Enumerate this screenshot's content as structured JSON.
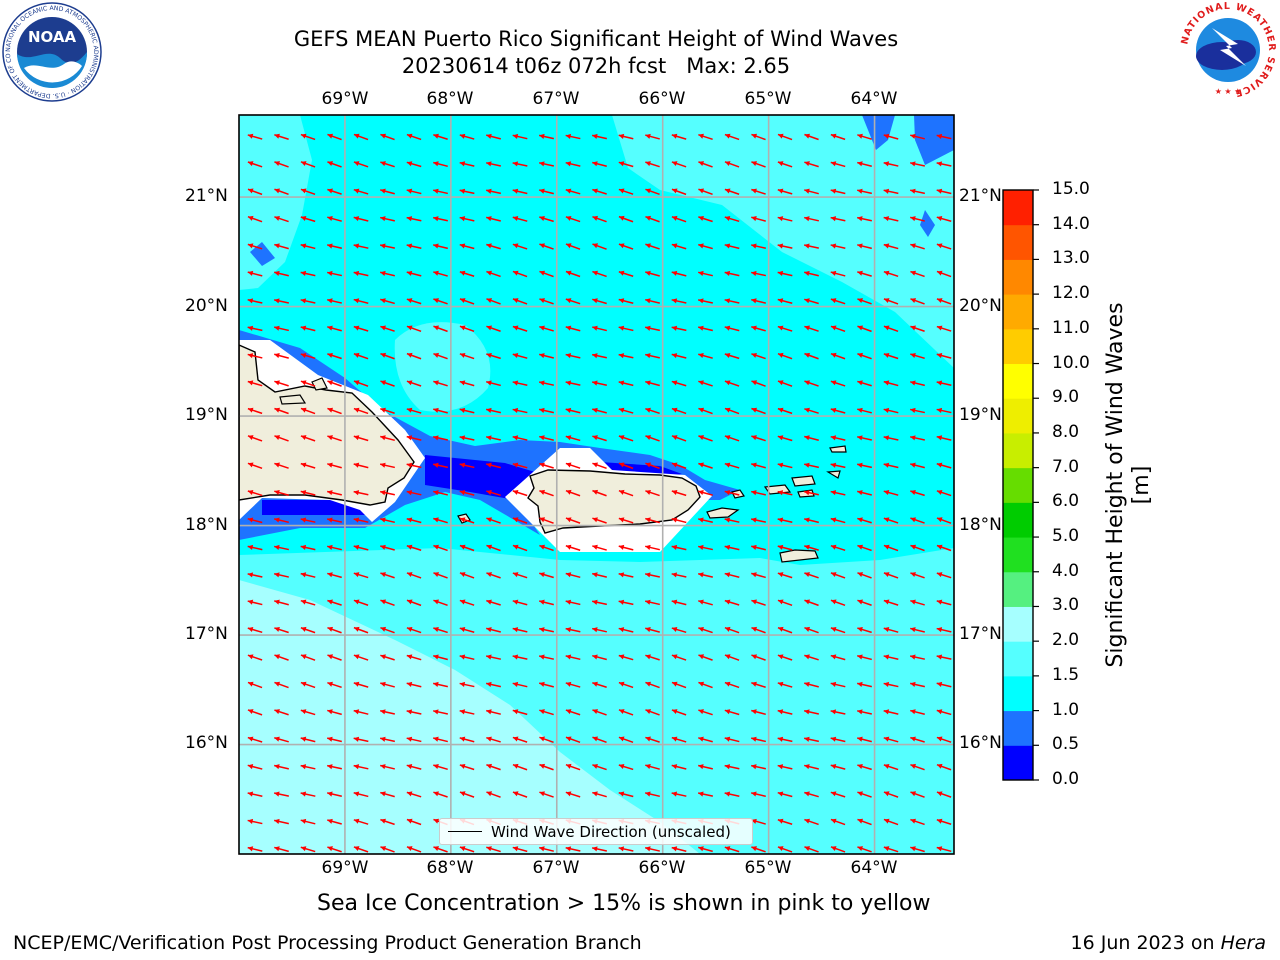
{
  "title": {
    "line1": "GEFS MEAN Puerto Rico Significant Height of Wind Waves",
    "line2": "20230614 t06z 072h fcst   Max: 2.65"
  },
  "logos": {
    "left_name": "noaa-logo",
    "left_text": "NOAA",
    "left_ring_text": "NATIONAL OCEANIC AND ATMOSPHERIC ADMINISTRATION · U.S. DEPARTMENT OF COMMERCE",
    "right_name": "national-weather-service-logo",
    "right_ring_text": "NATIONAL WEATHER SERVICE"
  },
  "map": {
    "lon_range": [
      -70.0,
      -63.25
    ],
    "lat_range": [
      15.0,
      21.75
    ],
    "lon_ticks": [
      "69°W",
      "68°W",
      "67°W",
      "66°W",
      "65°W",
      "64°W"
    ],
    "lon_values": [
      -69,
      -68,
      -67,
      -66,
      -65,
      -64
    ],
    "lat_ticks": [
      "21°N",
      "20°N",
      "19°N",
      "18°N",
      "17°N",
      "16°N"
    ],
    "lat_values": [
      21,
      20,
      19,
      18,
      17,
      16
    ],
    "grid": true,
    "arrow_color": "#ff0000",
    "land_color": "#f0eedc",
    "legend_label": "Wind Wave Direction (unscaled)",
    "legend_location": "lower-center"
  },
  "colorbar": {
    "label": "Significant Height of Wind Waves [m]",
    "levels": [
      0.0,
      0.5,
      1.0,
      1.5,
      2.0,
      3.0,
      4.0,
      5.0,
      6.0,
      7.0,
      8.0,
      9.0,
      10.0,
      11.0,
      12.0,
      13.0,
      14.0,
      15.0
    ],
    "tick_labels": [
      "0.0",
      "0.5",
      "1.0",
      "1.5",
      "2.0",
      "3.0",
      "4.0",
      "5.0",
      "6.0",
      "7.0",
      "8.0",
      "9.0",
      "10.0",
      "11.0",
      "12.0",
      "13.0",
      "14.0",
      "15.0"
    ],
    "colors": [
      "#0000ff",
      "#1e73ff",
      "#00ffff",
      "#55ffff",
      "#a6ffff",
      "#55f080",
      "#20e020",
      "#00cc00",
      "#66dd00",
      "#c8ee00",
      "#eeee00",
      "#ffff00",
      "#ffcc00",
      "#ffaa00",
      "#ff8800",
      "#ff5500",
      "#ff2000"
    ]
  },
  "footnote": "Sea Ice Concentration > 15% is shown in pink to yellow",
  "footer": {
    "left": "NCEP/EMC/Verification Post Processing Product Generation Branch",
    "right_prefix": "16 Jun 2023 on ",
    "right_host": "Hera"
  }
}
